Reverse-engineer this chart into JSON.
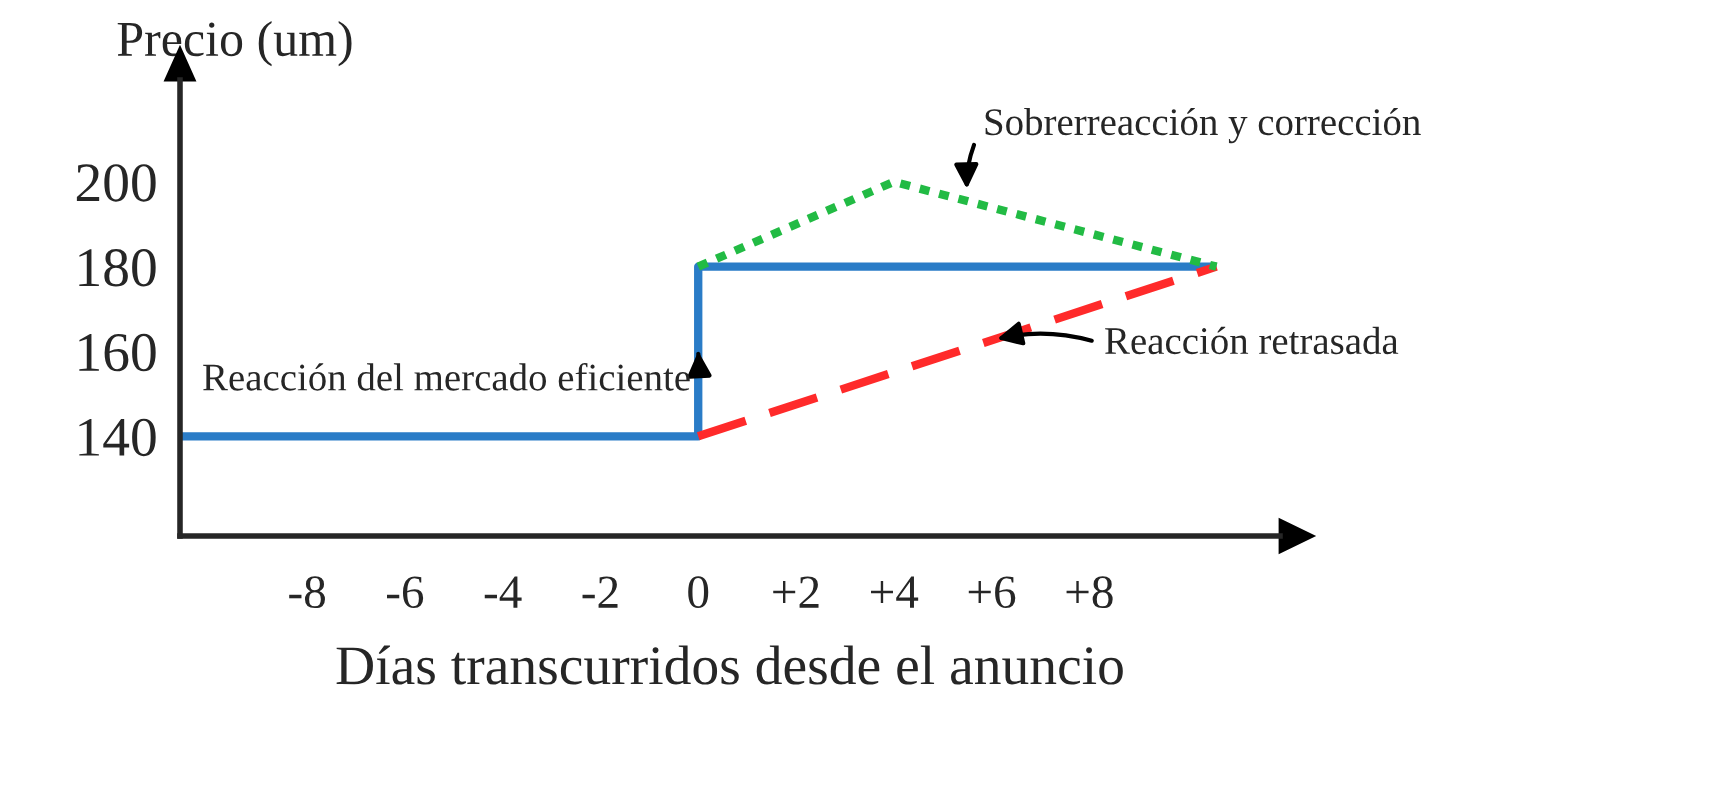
{
  "chart_data": {
    "type": "line",
    "xlabel": "Días transcurridos desde el anuncio",
    "ylabel": "Precio (um)",
    "xlim": [
      -10.6,
      11.9
    ],
    "ylim": [
      116.5,
      224
    ],
    "xticks": [
      -8,
      -6,
      -4,
      -2,
      0,
      {
        "value": 2,
        "label": "+2"
      },
      {
        "value": 4,
        "label": "+4"
      },
      {
        "value": 6,
        "label": "+6"
      },
      {
        "value": 8,
        "label": "+8"
      }
    ],
    "yticks": [
      140,
      160,
      180,
      200
    ],
    "series": [
      {
        "color": "#2a7cc7",
        "line_style": "solid",
        "x": [
          -10.6,
          0,
          0,
          10.6
        ],
        "values": [
          140,
          140,
          180,
          180
        ]
      },
      {
        "color": "#ff2a2a",
        "line_style": "dashed",
        "x": [
          0,
          10.6
        ],
        "values": [
          140,
          180
        ]
      },
      {
        "color": "#22bb44",
        "line_style": "dotted",
        "x": [
          0,
          4,
          10.6
        ],
        "values": [
          180,
          200,
          180
        ]
      }
    ],
    "annotations": [
      {
        "text": "Sobrerreacción y corrección",
        "x": 5.5,
        "y": 197
      },
      {
        "text": "Reacción retrasada",
        "x": 6,
        "y": 162.6
      },
      {
        "text": "Reacción del mercado eficiente",
        "x": 0,
        "y": 160
      }
    ],
    "grid": false,
    "legend": false
  }
}
